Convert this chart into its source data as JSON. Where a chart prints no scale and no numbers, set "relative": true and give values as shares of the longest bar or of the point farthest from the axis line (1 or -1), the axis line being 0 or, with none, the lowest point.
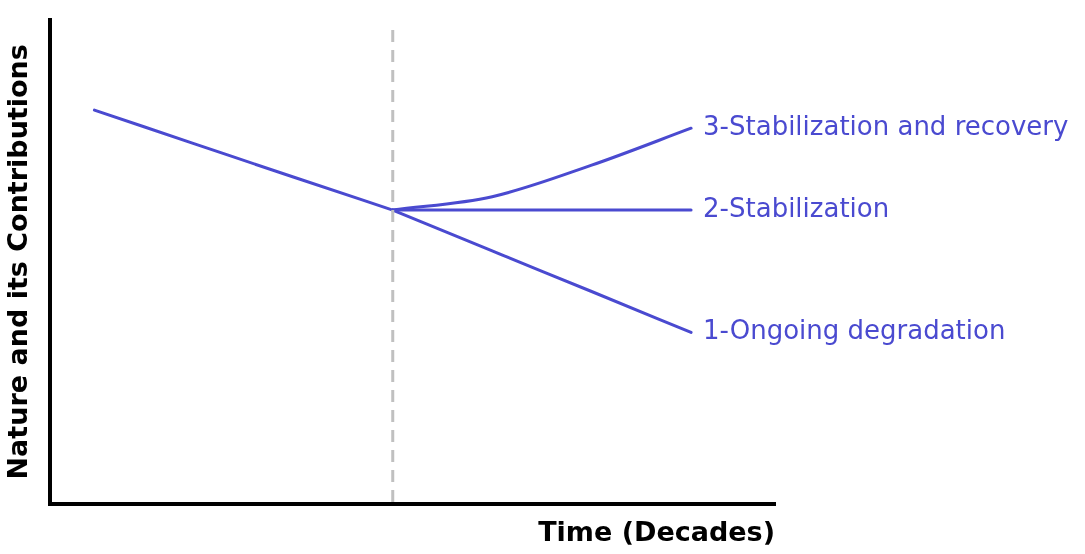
{
  "chart_data": {
    "type": "line",
    "relative": true,
    "xlabel": "Time (Decades)",
    "ylabel": "Nature and its Contributions",
    "categories": [
      null,
      null,
      null,
      null,
      null,
      null,
      null
    ],
    "series": [
      {
        "color": "#4a4ad0",
        "values": [
          1,
          0.915,
          0.83,
          0.746,
          null,
          null,
          null
        ]
      },
      {
        "name": "1-Ongoing degradation",
        "color": "#4a4ad0",
        "values": [
          null,
          null,
          null,
          0.746,
          0.642,
          0.539,
          0.435
        ]
      },
      {
        "name": "2-Stabilization",
        "color": "#4a4ad0",
        "values": [
          null,
          null,
          null,
          0.746,
          0.746,
          0.746,
          0.746
        ]
      },
      {
        "name": "3-Stabilization and recovery",
        "color": "#4a4ad0",
        "values": [
          null,
          null,
          null,
          0.746,
          0.78,
          0.86,
          0.954
        ]
      }
    ],
    "grid": false,
    "legend": false,
    "marker": "none",
    "line_style": "solid"
  }
}
